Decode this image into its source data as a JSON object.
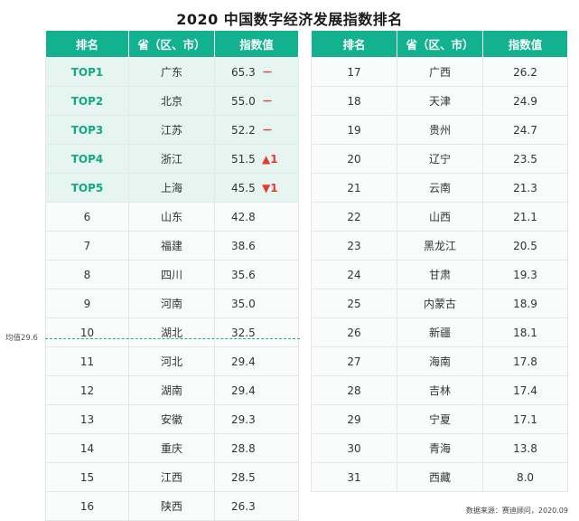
{
  "title": "2020 中国数字经济发展指数排名",
  "headers": {
    "rank": "排名",
    "province": "省（区、市）",
    "index": "指数值"
  },
  "left_rows": [
    {
      "rank": "TOP1",
      "province": "广东",
      "value": "65.3",
      "delta": "－",
      "top": true
    },
    {
      "rank": "TOP2",
      "province": "北京",
      "value": "55.0",
      "delta": "－",
      "top": true
    },
    {
      "rank": "TOP3",
      "province": "江苏",
      "value": "52.2",
      "delta": "－",
      "top": true
    },
    {
      "rank": "TOP4",
      "province": "浙江",
      "value": "51.5",
      "delta": "▲1",
      "top": true
    },
    {
      "rank": "TOP5",
      "province": "上海",
      "value": "45.5",
      "delta": "▼1",
      "top": true
    },
    {
      "rank": "6",
      "province": "山东",
      "value": "42.8",
      "delta": "",
      "top": false
    },
    {
      "rank": "7",
      "province": "福建",
      "value": "38.6",
      "delta": "",
      "top": false
    },
    {
      "rank": "8",
      "province": "四川",
      "value": "35.6",
      "delta": "",
      "top": false
    },
    {
      "rank": "9",
      "province": "河南",
      "value": "35.0",
      "delta": "",
      "top": false
    },
    {
      "rank": "10",
      "province": "湖北",
      "value": "32.5",
      "delta": "",
      "top": false
    },
    {
      "rank": "11",
      "province": "河北",
      "value": "29.4",
      "delta": "",
      "top": false
    },
    {
      "rank": "12",
      "province": "湖南",
      "value": "29.4",
      "delta": "",
      "top": false
    },
    {
      "rank": "13",
      "province": "安徽",
      "value": "29.3",
      "delta": "",
      "top": false
    },
    {
      "rank": "14",
      "province": "重庆",
      "value": "28.8",
      "delta": "",
      "top": false
    },
    {
      "rank": "15",
      "province": "江西",
      "value": "28.5",
      "delta": "",
      "top": false
    },
    {
      "rank": "16",
      "province": "陕西",
      "value": "26.3",
      "delta": "",
      "top": false
    }
  ],
  "right_rows": [
    {
      "rank": "17",
      "province": "广西",
      "value": "26.2"
    },
    {
      "rank": "18",
      "province": "天津",
      "value": "24.9"
    },
    {
      "rank": "19",
      "province": "贵州",
      "value": "24.7"
    },
    {
      "rank": "20",
      "province": "辽宁",
      "value": "23.5"
    },
    {
      "rank": "21",
      "province": "云南",
      "value": "21.3"
    },
    {
      "rank": "22",
      "province": "山西",
      "value": "21.1"
    },
    {
      "rank": "23",
      "province": "黑龙江",
      "value": "20.5"
    },
    {
      "rank": "24",
      "province": "甘肃",
      "value": "19.3"
    },
    {
      "rank": "25",
      "province": "内蒙古",
      "value": "18.9"
    },
    {
      "rank": "26",
      "province": "新疆",
      "value": "18.1"
    },
    {
      "rank": "27",
      "province": "海南",
      "value": "17.8"
    },
    {
      "rank": "28",
      "province": "吉林",
      "value": "17.4"
    },
    {
      "rank": "29",
      "province": "宁夏",
      "value": "17.1"
    },
    {
      "rank": "30",
      "province": "青海",
      "value": "13.8"
    },
    {
      "rank": "31",
      "province": "西藏",
      "value": "8.0"
    }
  ],
  "average_label": "均值29.6",
  "source": "数据来源：赛迪顾问，2020.09",
  "colors": {
    "header_bg": "#12b290",
    "top_rank_text": "#12a983",
    "top_row_bg": "#e6f5f0",
    "delta": "#e8392c"
  }
}
